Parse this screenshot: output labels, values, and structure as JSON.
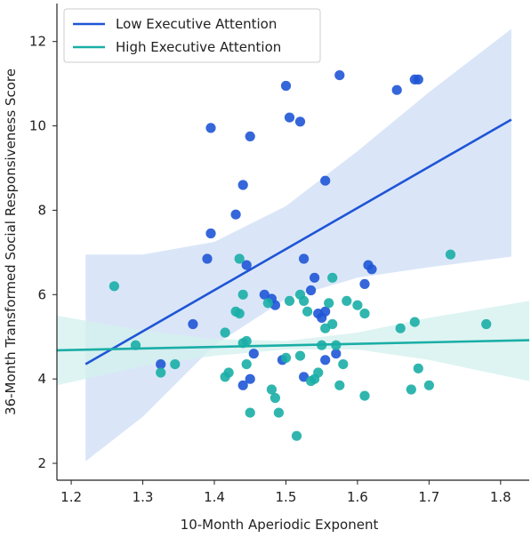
{
  "chart_data": {
    "type": "scatter",
    "xlabel": "10-Month Aperiodic Exponent",
    "ylabel": "36-Month Transformed Social Responsiveness Score",
    "xlim": [
      1.18,
      1.84
    ],
    "ylim": [
      1.6,
      12.9
    ],
    "x_ticks": [
      "1.2",
      "1.3",
      "1.4",
      "1.5",
      "1.6",
      "1.7",
      "1.8"
    ],
    "y_ticks": [
      "2",
      "4",
      "6",
      "8",
      "10",
      "12"
    ],
    "grid": false,
    "legend_position": "top-left",
    "series": [
      {
        "name": "Low Executive Attention",
        "color": "#1f55d6",
        "band_color": "#cdddf5",
        "points": [
          [
            1.325,
            4.35
          ],
          [
            1.37,
            5.3
          ],
          [
            1.39,
            6.85
          ],
          [
            1.395,
            7.45
          ],
          [
            1.395,
            9.95
          ],
          [
            1.43,
            7.9
          ],
          [
            1.44,
            8.6
          ],
          [
            1.445,
            6.7
          ],
          [
            1.45,
            9.75
          ],
          [
            1.44,
            3.85
          ],
          [
            1.45,
            4.0
          ],
          [
            1.455,
            4.6
          ],
          [
            1.47,
            6.0
          ],
          [
            1.48,
            5.9
          ],
          [
            1.485,
            5.75
          ],
          [
            1.495,
            4.45
          ],
          [
            1.5,
            10.95
          ],
          [
            1.505,
            10.2
          ],
          [
            1.52,
            10.1
          ],
          [
            1.525,
            6.85
          ],
          [
            1.525,
            4.05
          ],
          [
            1.535,
            6.1
          ],
          [
            1.54,
            6.4
          ],
          [
            1.545,
            5.55
          ],
          [
            1.55,
            5.45
          ],
          [
            1.555,
            5.6
          ],
          [
            1.555,
            8.7
          ],
          [
            1.555,
            4.45
          ],
          [
            1.57,
            4.6
          ],
          [
            1.575,
            11.2
          ],
          [
            1.61,
            6.25
          ],
          [
            1.615,
            6.7
          ],
          [
            1.62,
            6.6
          ],
          [
            1.655,
            10.85
          ],
          [
            1.68,
            11.1
          ],
          [
            1.685,
            11.1
          ]
        ],
        "fit": {
          "x": [
            1.22,
            1.815
          ],
          "y": [
            4.35,
            10.15
          ]
        },
        "ci_band": {
          "x": [
            1.22,
            1.3,
            1.4,
            1.5,
            1.6,
            1.7,
            1.815
          ],
          "upper": [
            6.95,
            6.95,
            7.25,
            8.1,
            9.4,
            10.8,
            12.3
          ],
          "lower": [
            2.05,
            3.1,
            4.8,
            5.9,
            6.4,
            6.65,
            6.9
          ]
        }
      },
      {
        "name": "High Executive Attention",
        "color": "#1aaea6",
        "band_color": "#d3f0ed",
        "points": [
          [
            1.26,
            6.2
          ],
          [
            1.29,
            4.8
          ],
          [
            1.325,
            4.15
          ],
          [
            1.345,
            4.35
          ],
          [
            1.415,
            5.1
          ],
          [
            1.415,
            4.05
          ],
          [
            1.42,
            4.15
          ],
          [
            1.43,
            5.6
          ],
          [
            1.435,
            5.55
          ],
          [
            1.435,
            6.85
          ],
          [
            1.44,
            6.0
          ],
          [
            1.44,
            4.85
          ],
          [
            1.445,
            4.35
          ],
          [
            1.445,
            4.9
          ],
          [
            1.45,
            3.2
          ],
          [
            1.475,
            5.8
          ],
          [
            1.48,
            3.75
          ],
          [
            1.485,
            3.55
          ],
          [
            1.49,
            3.2
          ],
          [
            1.5,
            4.5
          ],
          [
            1.505,
            5.85
          ],
          [
            1.515,
            2.65
          ],
          [
            1.52,
            6.0
          ],
          [
            1.52,
            4.55
          ],
          [
            1.525,
            5.85
          ],
          [
            1.53,
            5.6
          ],
          [
            1.535,
            3.95
          ],
          [
            1.54,
            4.0
          ],
          [
            1.545,
            4.15
          ],
          [
            1.55,
            4.8
          ],
          [
            1.555,
            5.2
          ],
          [
            1.56,
            5.8
          ],
          [
            1.565,
            6.4
          ],
          [
            1.565,
            5.3
          ],
          [
            1.57,
            4.8
          ],
          [
            1.575,
            3.85
          ],
          [
            1.58,
            4.35
          ],
          [
            1.585,
            5.85
          ],
          [
            1.6,
            5.75
          ],
          [
            1.61,
            3.6
          ],
          [
            1.61,
            5.55
          ],
          [
            1.66,
            5.2
          ],
          [
            1.675,
            3.75
          ],
          [
            1.68,
            5.35
          ],
          [
            1.685,
            4.25
          ],
          [
            1.7,
            3.85
          ],
          [
            1.73,
            6.95
          ],
          [
            1.78,
            5.3
          ]
        ],
        "fit": {
          "x": [
            1.18,
            1.84
          ],
          "y": [
            4.68,
            4.92
          ]
        },
        "ci_band": {
          "x": [
            1.18,
            1.3,
            1.4,
            1.5,
            1.6,
            1.7,
            1.84
          ],
          "upper": [
            5.5,
            5.15,
            4.95,
            4.9,
            5.1,
            5.45,
            5.85
          ],
          "lower": [
            3.85,
            4.3,
            4.55,
            4.7,
            4.7,
            4.45,
            3.95
          ]
        }
      }
    ]
  }
}
